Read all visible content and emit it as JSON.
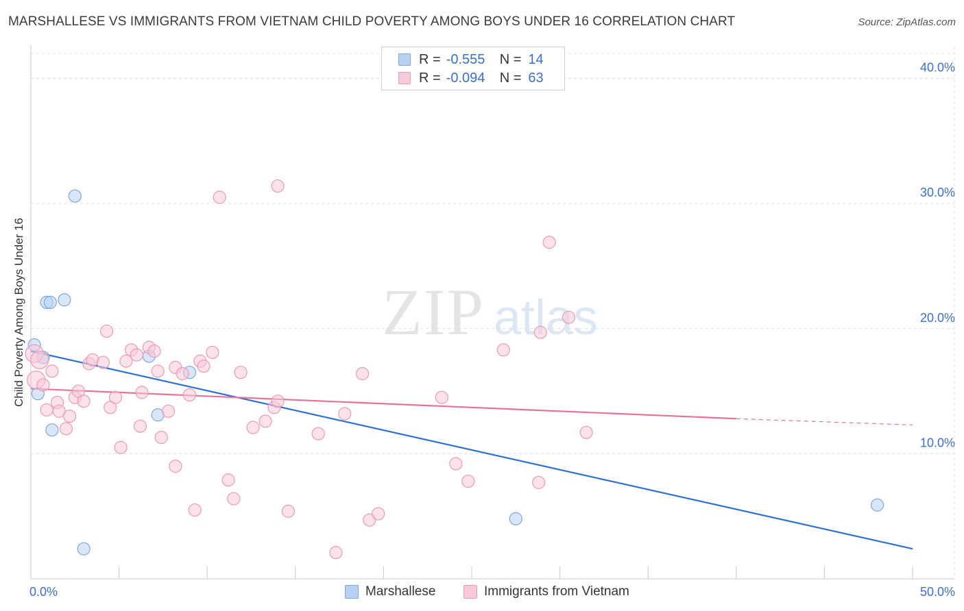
{
  "header": {
    "title": "MARSHALLESE VS IMMIGRANTS FROM VIETNAM CHILD POVERTY AMONG BOYS UNDER 16 CORRELATION CHART",
    "source": "Source: ZipAtlas.com"
  },
  "watermark": {
    "zip": "ZIP",
    "atlas": "atlas"
  },
  "stats": {
    "r_label": "R =",
    "n_label": "N =",
    "rows": [
      {
        "series": "Marshallese",
        "r": "-0.555",
        "n": "14"
      },
      {
        "series": "Immigrants from Vietnam",
        "r": "-0.094",
        "n": "63"
      }
    ]
  },
  "legend": {
    "items": [
      "Marshallese",
      "Immigrants from Vietnam"
    ]
  },
  "colors": {
    "marshallese_fill": "#b8d1f3",
    "marshallese_stroke": "#7ea6e0",
    "marshallese_line": "#2f6fd1",
    "vietnam_fill": "#f8c9d8",
    "vietnam_stroke": "#eb9ab5",
    "vietnam_line": "#e4729a",
    "axis_label": "#3b6fc9",
    "grid": "#dddddd"
  },
  "chart_data": {
    "type": "scatter",
    "title": "MARSHALLESE VS IMMIGRANTS FROM VIETNAM CHILD POVERTY AMONG BOYS UNDER 16 CORRELATION CHART",
    "xlabel": "",
    "ylabel": "Child Poverty Among Boys Under 16",
    "xlim": [
      0,
      50
    ],
    "ylim": [
      0,
      42
    ],
    "x_tick_labels": [
      "0.0%",
      "50.0%"
    ],
    "y_ticks": [
      10,
      20,
      30,
      40
    ],
    "y_tick_labels": [
      "10.0%",
      "20.0%",
      "30.0%",
      "40.0%"
    ],
    "grid": true,
    "series": [
      {
        "name": "Marshallese",
        "points": [
          [
            0.2,
            18.7
          ],
          [
            0.4,
            14.8
          ],
          [
            0.7,
            17.7
          ],
          [
            0.9,
            22.1
          ],
          [
            1.1,
            22.1
          ],
          [
            1.2,
            11.9
          ],
          [
            1.9,
            22.3
          ],
          [
            2.5,
            30.6
          ],
          [
            3.0,
            2.4
          ],
          [
            6.7,
            17.8
          ],
          [
            7.2,
            13.1
          ],
          [
            9.0,
            16.5
          ],
          [
            27.5,
            4.8
          ],
          [
            48.0,
            5.9
          ]
        ],
        "trend": {
          "x": [
            0,
            50
          ],
          "y": [
            18.2,
            2.4
          ]
        }
      },
      {
        "name": "Immigrants from Vietnam",
        "points": [
          [
            0.2,
            18.0
          ],
          [
            0.3,
            15.9
          ],
          [
            0.7,
            15.5
          ],
          [
            0.9,
            13.5
          ],
          [
            1.2,
            16.6
          ],
          [
            1.5,
            14.1
          ],
          [
            1.6,
            13.4
          ],
          [
            2.0,
            12.0
          ],
          [
            2.2,
            13.0
          ],
          [
            2.5,
            14.5
          ],
          [
            2.7,
            15.0
          ],
          [
            3.0,
            14.2
          ],
          [
            3.3,
            17.2
          ],
          [
            3.5,
            17.5
          ],
          [
            4.1,
            17.3
          ],
          [
            4.3,
            19.8
          ],
          [
            4.5,
            13.7
          ],
          [
            4.8,
            14.5
          ],
          [
            5.1,
            10.5
          ],
          [
            5.4,
            17.4
          ],
          [
            5.7,
            18.3
          ],
          [
            6.0,
            17.9
          ],
          [
            6.2,
            12.2
          ],
          [
            6.3,
            14.9
          ],
          [
            6.7,
            18.5
          ],
          [
            7.0,
            18.2
          ],
          [
            7.2,
            16.6
          ],
          [
            7.4,
            11.3
          ],
          [
            7.8,
            13.4
          ],
          [
            8.2,
            9.0
          ],
          [
            8.2,
            16.9
          ],
          [
            8.6,
            16.4
          ],
          [
            9.0,
            14.7
          ],
          [
            9.3,
            5.5
          ],
          [
            9.6,
            17.4
          ],
          [
            9.8,
            17.0
          ],
          [
            10.3,
            18.1
          ],
          [
            10.7,
            30.5
          ],
          [
            11.2,
            7.9
          ],
          [
            11.5,
            6.4
          ],
          [
            11.9,
            16.5
          ],
          [
            12.6,
            12.1
          ],
          [
            13.3,
            12.6
          ],
          [
            13.8,
            13.7
          ],
          [
            14.0,
            14.2
          ],
          [
            14.0,
            31.4
          ],
          [
            14.6,
            5.4
          ],
          [
            16.3,
            11.6
          ],
          [
            17.3,
            2.1
          ],
          [
            17.8,
            13.2
          ],
          [
            18.8,
            16.4
          ],
          [
            19.2,
            4.7
          ],
          [
            19.7,
            5.2
          ],
          [
            23.3,
            14.5
          ],
          [
            24.1,
            9.2
          ],
          [
            24.8,
            7.8
          ],
          [
            26.8,
            18.3
          ],
          [
            28.8,
            7.7
          ],
          [
            28.9,
            19.7
          ],
          [
            29.4,
            26.9
          ],
          [
            30.5,
            20.9
          ],
          [
            31.5,
            11.7
          ],
          [
            0.5,
            17.5
          ]
        ],
        "trend": {
          "x": [
            0,
            40
          ],
          "y": [
            15.2,
            12.8
          ]
        },
        "trend_extrapolated": {
          "x": [
            40,
            50
          ],
          "y": [
            12.8,
            12.3
          ]
        }
      }
    ]
  }
}
